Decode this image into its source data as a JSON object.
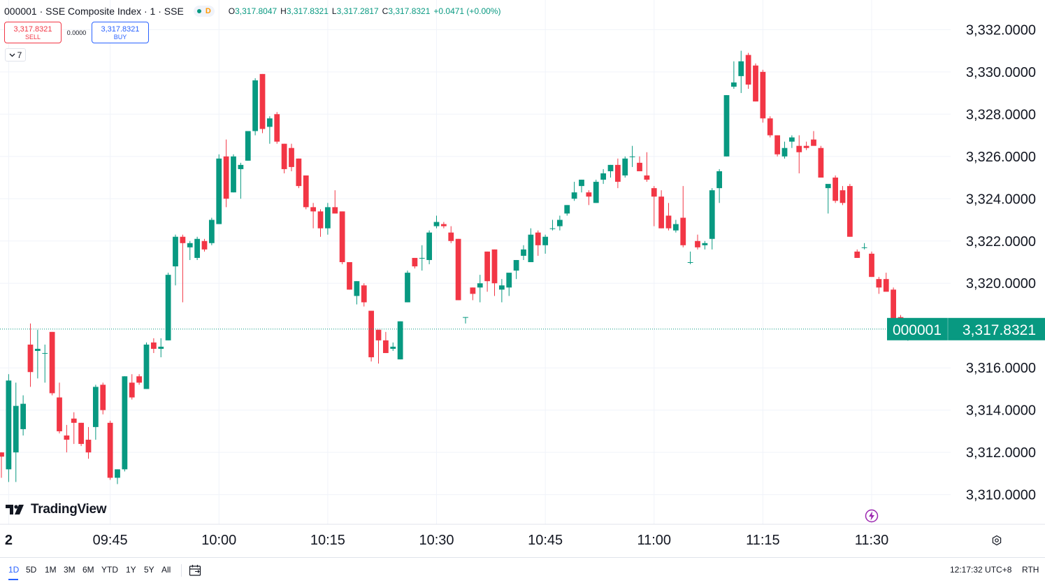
{
  "header": {
    "title": "000001 · SSE Composite Index · 1 · SSE",
    "market_badge": "D",
    "ohlc": {
      "o_label": "O",
      "o_value": "3,317.8047",
      "h_label": "H",
      "h_value": "3,317.8321",
      "l_label": "L",
      "l_value": "3,317.2817",
      "c_label": "C",
      "c_value": "3,317.8321",
      "change": "+0.0471 (+0.00%)"
    }
  },
  "trade": {
    "sell_price": "3,317.8321",
    "sell_label": "SELL",
    "spread": "0.0000",
    "buy_price": "3,317.8321",
    "buy_label": "BUY"
  },
  "indicators_count": "7",
  "price_tag": {
    "symbol": "000001",
    "price": "3,317.8321"
  },
  "logo_text": "TradingView",
  "bottom_bar": {
    "ranges": [
      "1D",
      "5D",
      "1M",
      "3M",
      "6M",
      "YTD",
      "1Y",
      "5Y",
      "All"
    ],
    "active_range": "1D",
    "clock": "12:17:32 UTC+8",
    "session": "RTH"
  },
  "colors": {
    "up": "#089981",
    "down": "#f23645",
    "accent": "#2962ff",
    "grid": "#f0f3fa"
  },
  "chart_data": {
    "type": "candlestick",
    "interval_minutes": 1,
    "y_ticks": [
      "3,332.0000",
      "3,330.0000",
      "3,328.0000",
      "3,326.0000",
      "3,324.0000",
      "3,322.0000",
      "3,320.0000",
      "3,316.0000",
      "3,314.0000",
      "3,312.0000",
      "3,310.0000"
    ],
    "x_ticks": [
      {
        "time": "09:31",
        "label": "2"
      },
      {
        "time": "09:45",
        "label": "09:45"
      },
      {
        "time": "10:00",
        "label": "10:00"
      },
      {
        "time": "10:15",
        "label": "10:15"
      },
      {
        "time": "10:30",
        "label": "10:30"
      },
      {
        "time": "10:45",
        "label": "10:45"
      },
      {
        "time": "11:00",
        "label": "11:00"
      },
      {
        "time": "11:15",
        "label": "11:15"
      },
      {
        "time": "11:30",
        "label": "11:30"
      }
    ],
    "ylim": [
      3308.6,
      3333.4
    ],
    "xlim": [
      "09:30",
      "11:30"
    ],
    "current_price": 3317.8321,
    "start_time": "09:30",
    "candles": [
      [
        3312.0,
        3312.0,
        3310.8,
        3311.8
      ],
      [
        3311.2,
        3315.7,
        3310.6,
        3315.4
      ],
      [
        3312.0,
        3315.3,
        3310.6,
        3314.2
      ],
      [
        3313.1,
        3314.7,
        3312.8,
        3314.3
      ],
      [
        3317.1,
        3318.1,
        3315.1,
        3315.8
      ],
      [
        3316.8,
        3317.8,
        3315.5,
        3316.9
      ],
      [
        3316.7,
        3317.1,
        3315.3,
        3316.7
      ],
      [
        3317.7,
        3317.7,
        3314.7,
        3314.8
      ],
      [
        3314.6,
        3315.3,
        3312.9,
        3313.0
      ],
      [
        3312.8,
        3313.3,
        3312.0,
        3312.6
      ],
      [
        3313.6,
        3313.9,
        3312.4,
        3313.4
      ],
      [
        3313.4,
        3313.4,
        3312.3,
        3312.4
      ],
      [
        3312.6,
        3313.2,
        3311.7,
        3312.0
      ],
      [
        3313.2,
        3315.2,
        3312.6,
        3315.1
      ],
      [
        3315.2,
        3315.3,
        3313.8,
        3314.0
      ],
      [
        3313.4,
        3313.5,
        3310.7,
        3310.8
      ],
      [
        3310.8,
        3311.2,
        3310.5,
        3311.2
      ],
      [
        3311.2,
        3315.6,
        3311.1,
        3315.6
      ],
      [
        3315.3,
        3315.7,
        3314.5,
        3314.6
      ],
      [
        3315.6,
        3315.7,
        3315.2,
        3315.3
      ],
      [
        3315.0,
        3317.2,
        3315.0,
        3317.1
      ],
      [
        3317.2,
        3317.4,
        3316.7,
        3316.9
      ],
      [
        3316.9,
        3317.4,
        3316.5,
        3317.0
      ],
      [
        3317.3,
        3320.5,
        3317.3,
        3320.4
      ],
      [
        3320.8,
        3322.3,
        3319.9,
        3322.2
      ],
      [
        3322.2,
        3322.3,
        3319.1,
        3321.9
      ],
      [
        3321.7,
        3322.0,
        3321.1,
        3321.9
      ],
      [
        3321.2,
        3322.2,
        3321.1,
        3322.1
      ],
      [
        3322.0,
        3322.1,
        3321.5,
        3321.6
      ],
      [
        3321.9,
        3323.1,
        3321.8,
        3323.0
      ],
      [
        3322.8,
        3326.1,
        3322.8,
        3325.9
      ],
      [
        3326.0,
        3326.8,
        3323.6,
        3324.0
      ],
      [
        3324.3,
        3326.1,
        3324.3,
        3326.0
      ],
      [
        3325.4,
        3325.7,
        3324.0,
        3325.6
      ],
      [
        3325.8,
        3327.2,
        3325.8,
        3327.2
      ],
      [
        3327.2,
        3329.7,
        3327.0,
        3329.6
      ],
      [
        3329.9,
        3329.9,
        3327.1,
        3327.3
      ],
      [
        3327.4,
        3327.9,
        3326.6,
        3327.8
      ],
      [
        3328.0,
        3328.1,
        3326.6,
        3326.7
      ],
      [
        3326.6,
        3326.6,
        3325.2,
        3325.4
      ],
      [
        3326.4,
        3326.6,
        3325.3,
        3325.5
      ],
      [
        3325.9,
        3325.9,
        3324.5,
        3324.6
      ],
      [
        3325.1,
        3325.1,
        3323.5,
        3323.6
      ],
      [
        3323.6,
        3323.8,
        3322.6,
        3323.4
      ],
      [
        3323.4,
        3323.5,
        3322.2,
        3322.6
      ],
      [
        3322.6,
        3323.8,
        3322.3,
        3323.6
      ],
      [
        3323.6,
        3324.4,
        3323.3,
        3323.3
      ],
      [
        3323.4,
        3323.4,
        3320.9,
        3321.0
      ],
      [
        3321.0,
        3321.0,
        3319.7,
        3319.7
      ],
      [
        3319.4,
        3320.1,
        3319.0,
        3320.1
      ],
      [
        3319.9,
        3320.0,
        3318.9,
        3319.1
      ],
      [
        3318.7,
        3318.7,
        3316.3,
        3316.5
      ],
      [
        3317.8,
        3317.8,
        3316.2,
        3317.3
      ],
      [
        3317.3,
        3317.7,
        3316.7,
        3316.7
      ],
      [
        3316.9,
        3317.2,
        3316.8,
        3317.0
      ],
      [
        3316.4,
        3318.2,
        3316.4,
        3318.2
      ],
      [
        3319.1,
        3320.6,
        3319.1,
        3320.5
      ],
      [
        3321.2,
        3321.2,
        3320.7,
        3320.8
      ],
      [
        3321.2,
        3321.8,
        3320.6,
        3321.2
      ],
      [
        3321.1,
        3322.5,
        3320.9,
        3322.4
      ],
      [
        3322.7,
        3323.2,
        3322.6,
        3322.9
      ],
      [
        3322.8,
        3322.9,
        3322.6,
        3322.7
      ],
      [
        3322.4,
        3322.7,
        3321.9,
        3322.0
      ],
      [
        3322.1,
        3322.1,
        3319.2,
        3319.2
      ],
      [
        3318.4,
        3318.4,
        3318.1,
        3318.4
      ],
      [
        3319.8,
        3319.8,
        3319.2,
        3319.5
      ],
      [
        3319.8,
        3320.4,
        3319.1,
        3320.0
      ],
      [
        3321.5,
        3321.5,
        3319.6,
        3320.1
      ],
      [
        3321.6,
        3321.6,
        3319.4,
        3320.0
      ],
      [
        3319.7,
        3320.2,
        3319.1,
        3319.9
      ],
      [
        3319.8,
        3320.3,
        3319.4,
        3320.5
      ],
      [
        3320.6,
        3321.1,
        3320.2,
        3321.1
      ],
      [
        3321.3,
        3321.8,
        3321.1,
        3321.6
      ],
      [
        3321.0,
        3322.6,
        3321.0,
        3322.3
      ],
      [
        3322.4,
        3322.5,
        3321.3,
        3321.8
      ],
      [
        3321.8,
        3322.3,
        3321.4,
        3322.2
      ],
      [
        3322.6,
        3323.0,
        3322.5,
        3322.6
      ],
      [
        3322.7,
        3323.2,
        3322.5,
        3323.0
      ],
      [
        3323.3,
        3323.7,
        3323.2,
        3323.7
      ],
      [
        3324.0,
        3324.8,
        3323.9,
        3324.3
      ],
      [
        3324.6,
        3324.9,
        3324.3,
        3324.9
      ],
      [
        3324.3,
        3324.4,
        3323.7,
        3324.1
      ],
      [
        3323.8,
        3324.9,
        3323.8,
        3324.8
      ],
      [
        3324.9,
        3325.4,
        3324.7,
        3325.2
      ],
      [
        3325.3,
        3325.6,
        3325.0,
        3325.6
      ],
      [
        3325.6,
        3325.9,
        3324.5,
        3324.8
      ],
      [
        3325.1,
        3326.0,
        3325.0,
        3325.9
      ],
      [
        3326.0,
        3326.5,
        3325.5,
        3326.0
      ],
      [
        3325.7,
        3326.0,
        3325.5,
        3325.3
      ],
      [
        3325.1,
        3326.2,
        3324.8,
        3324.9
      ],
      [
        3324.5,
        3324.6,
        3322.7,
        3324.1
      ],
      [
        3324.1,
        3324.4,
        3322.6,
        3322.6
      ],
      [
        3323.2,
        3323.8,
        3322.5,
        3322.6
      ],
      [
        3322.5,
        3323.0,
        3322.4,
        3322.8
      ],
      [
        3323.1,
        3324.6,
        3321.7,
        3321.8
      ],
      [
        3321.0,
        3321.5,
        3320.9,
        3321.0
      ],
      [
        3322.0,
        3322.3,
        3321.6,
        3321.7
      ],
      [
        3321.8,
        3322.0,
        3321.6,
        3321.9
      ],
      [
        3322.1,
        3324.5,
        3321.6,
        3324.4
      ],
      [
        3324.5,
        3325.4,
        3323.8,
        3325.3
      ],
      [
        3326.0,
        3328.9,
        3326.0,
        3328.9
      ],
      [
        3329.3,
        3330.5,
        3329.2,
        3329.5
      ],
      [
        3329.8,
        3331.0,
        3329.0,
        3330.5
      ],
      [
        3330.8,
        3330.9,
        3329.2,
        3329.4
      ],
      [
        3330.3,
        3330.4,
        3328.6,
        3328.6
      ],
      [
        3330.0,
        3330.1,
        3327.6,
        3327.8
      ],
      [
        3327.8,
        3327.9,
        3326.9,
        3327.0
      ],
      [
        3327.0,
        3327.0,
        3326.0,
        3326.1
      ],
      [
        3326.0,
        3326.7,
        3325.9,
        3326.4
      ],
      [
        3326.7,
        3327.0,
        3326.4,
        3326.9
      ],
      [
        3326.5,
        3327.0,
        3325.2,
        3326.2
      ],
      [
        3326.5,
        3326.7,
        3326.3,
        3326.4
      ],
      [
        3326.8,
        3327.2,
        3326.7,
        3326.5
      ],
      [
        3326.4,
        3326.5,
        3325.0,
        3325.0
      ],
      [
        3324.5,
        3324.6,
        3323.3,
        3324.7
      ],
      [
        3325.0,
        3325.1,
        3323.8,
        3323.9
      ],
      [
        3324.4,
        3324.6,
        3323.7,
        3323.8
      ],
      [
        3324.6,
        3324.7,
        3322.2,
        3322.2
      ],
      [
        3321.5,
        3321.6,
        3321.2,
        3321.2
      ],
      [
        3321.7,
        3321.9,
        3321.6,
        3321.7
      ],
      [
        3321.4,
        3321.5,
        3320.3,
        3320.3
      ],
      [
        3320.2,
        3320.3,
        3319.5,
        3319.8
      ],
      [
        3320.2,
        3320.5,
        3319.7,
        3319.6
      ],
      [
        3319.7,
        3319.8,
        3318.0,
        3318.0
      ],
      [
        3318.4,
        3318.5,
        3317.6,
        3317.6
      ],
      [
        3317.8047,
        3317.8321,
        3317.2817,
        3317.8321
      ]
    ]
  }
}
